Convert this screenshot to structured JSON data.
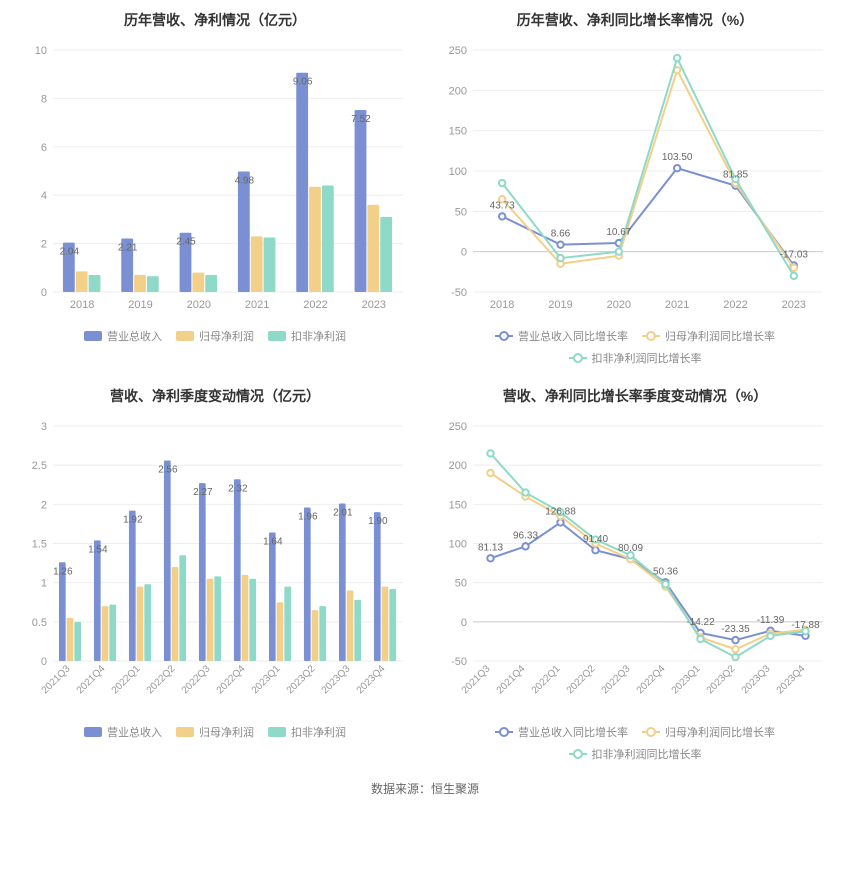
{
  "footer": "数据来源：恒生聚源",
  "colors": {
    "series1": "#7b90d2",
    "series2": "#f2d08a",
    "series3": "#8fd9c9",
    "axis_text": "#999999",
    "grid": "#eeeeee",
    "label": "#666666",
    "bg": "#ffffff"
  },
  "chart1": {
    "title": "历年营收、净利情况（亿元）",
    "type": "bar",
    "categories": [
      "2018",
      "2019",
      "2020",
      "2021",
      "2022",
      "2023"
    ],
    "ylim": [
      0,
      10
    ],
    "ytick_step": 2,
    "bar_width": 0.22,
    "series": [
      {
        "name": "营业总收入",
        "color": "#7b90d2",
        "values": [
          2.04,
          2.21,
          2.45,
          4.98,
          9.06,
          7.52
        ]
      },
      {
        "name": "归母净利润",
        "color": "#f2d08a",
        "values": [
          0.85,
          0.7,
          0.8,
          2.3,
          4.35,
          3.6
        ]
      },
      {
        "name": "扣非净利润",
        "color": "#8fd9c9",
        "values": [
          0.7,
          0.65,
          0.7,
          2.25,
          4.4,
          3.1
        ]
      }
    ],
    "point_labels": [
      "2.04",
      "2.21",
      "2.45",
      "4.98",
      "9.06",
      "7.52"
    ]
  },
  "chart2": {
    "title": "历年营收、净利同比增长率情况（%）",
    "type": "line",
    "categories": [
      "2018",
      "2019",
      "2020",
      "2021",
      "2022",
      "2023"
    ],
    "ylim": [
      -50,
      250
    ],
    "ytick_step": 50,
    "series": [
      {
        "name": "营业总收入同比增长率",
        "color": "#7b90d2",
        "values": [
          43.73,
          8.66,
          10.67,
          103.5,
          81.85,
          -17.03
        ]
      },
      {
        "name": "归母净利润同比增长率",
        "color": "#f2d08a",
        "values": [
          65,
          -15,
          -5,
          225,
          85,
          -20
        ]
      },
      {
        "name": "扣非净利润同比增长率",
        "color": "#8fd9c9",
        "values": [
          85,
          -8,
          0,
          240,
          90,
          -30
        ]
      }
    ],
    "point_labels": [
      "43.73",
      "8.66",
      "10.67",
      "103.50",
      "81.85",
      "-17.03"
    ]
  },
  "chart3": {
    "title": "营收、净利季度变动情况（亿元）",
    "type": "bar",
    "categories": [
      "2021Q3",
      "2021Q4",
      "2022Q1",
      "2022Q2",
      "2022Q3",
      "2022Q4",
      "2023Q1",
      "2023Q2",
      "2023Q3",
      "2023Q4"
    ],
    "ylim": [
      0,
      3
    ],
    "ytick_step": 0.5,
    "bar_width": 0.22,
    "rotate_x": true,
    "series": [
      {
        "name": "营业总收入",
        "color": "#7b90d2",
        "values": [
          1.26,
          1.54,
          1.92,
          2.56,
          2.27,
          2.32,
          1.64,
          1.96,
          2.01,
          1.9
        ]
      },
      {
        "name": "归母净利润",
        "color": "#f2d08a",
        "values": [
          0.55,
          0.7,
          0.95,
          1.2,
          1.05,
          1.1,
          0.75,
          0.65,
          0.9,
          0.95
        ]
      },
      {
        "name": "扣非净利润",
        "color": "#8fd9c9",
        "values": [
          0.5,
          0.72,
          0.98,
          1.35,
          1.08,
          1.05,
          0.95,
          0.7,
          0.78,
          0.92
        ]
      }
    ],
    "point_labels": [
      "1.26",
      "1.54",
      "1.92",
      "2.56",
      "2.27",
      "2.32",
      "1.64",
      "1.96",
      "2.01",
      "1.90"
    ]
  },
  "chart4": {
    "title": "营收、净利同比增长率季度变动情况（%）",
    "type": "line",
    "categories": [
      "2021Q3",
      "2021Q4",
      "2022Q1",
      "2022Q2",
      "2022Q3",
      "2022Q4",
      "2023Q1",
      "2023Q2",
      "2023Q3",
      "2023Q4"
    ],
    "ylim": [
      -50,
      250
    ],
    "ytick_step": 50,
    "rotate_x": true,
    "series": [
      {
        "name": "营业总收入同比增长率",
        "color": "#7b90d2",
        "values": [
          81.13,
          96.33,
          126.88,
          91.4,
          80.09,
          50.36,
          -14.22,
          -23.35,
          -11.39,
          -17.88
        ]
      },
      {
        "name": "归母净利润同比增长率",
        "color": "#f2d08a",
        "values": [
          190,
          160,
          135,
          100,
          80,
          45,
          -20,
          -35,
          -15,
          -10
        ]
      },
      {
        "name": "扣非净利润同比增长率",
        "color": "#8fd9c9",
        "values": [
          215,
          165,
          140,
          105,
          85,
          48,
          -22,
          -45,
          -18,
          -12
        ]
      }
    ],
    "point_labels": [
      "81.13",
      "96.33",
      "126.88",
      "91.40",
      "80.09",
      "50.36",
      "-14.22",
      "-23.35",
      "-11.39",
      "-17.88"
    ]
  }
}
